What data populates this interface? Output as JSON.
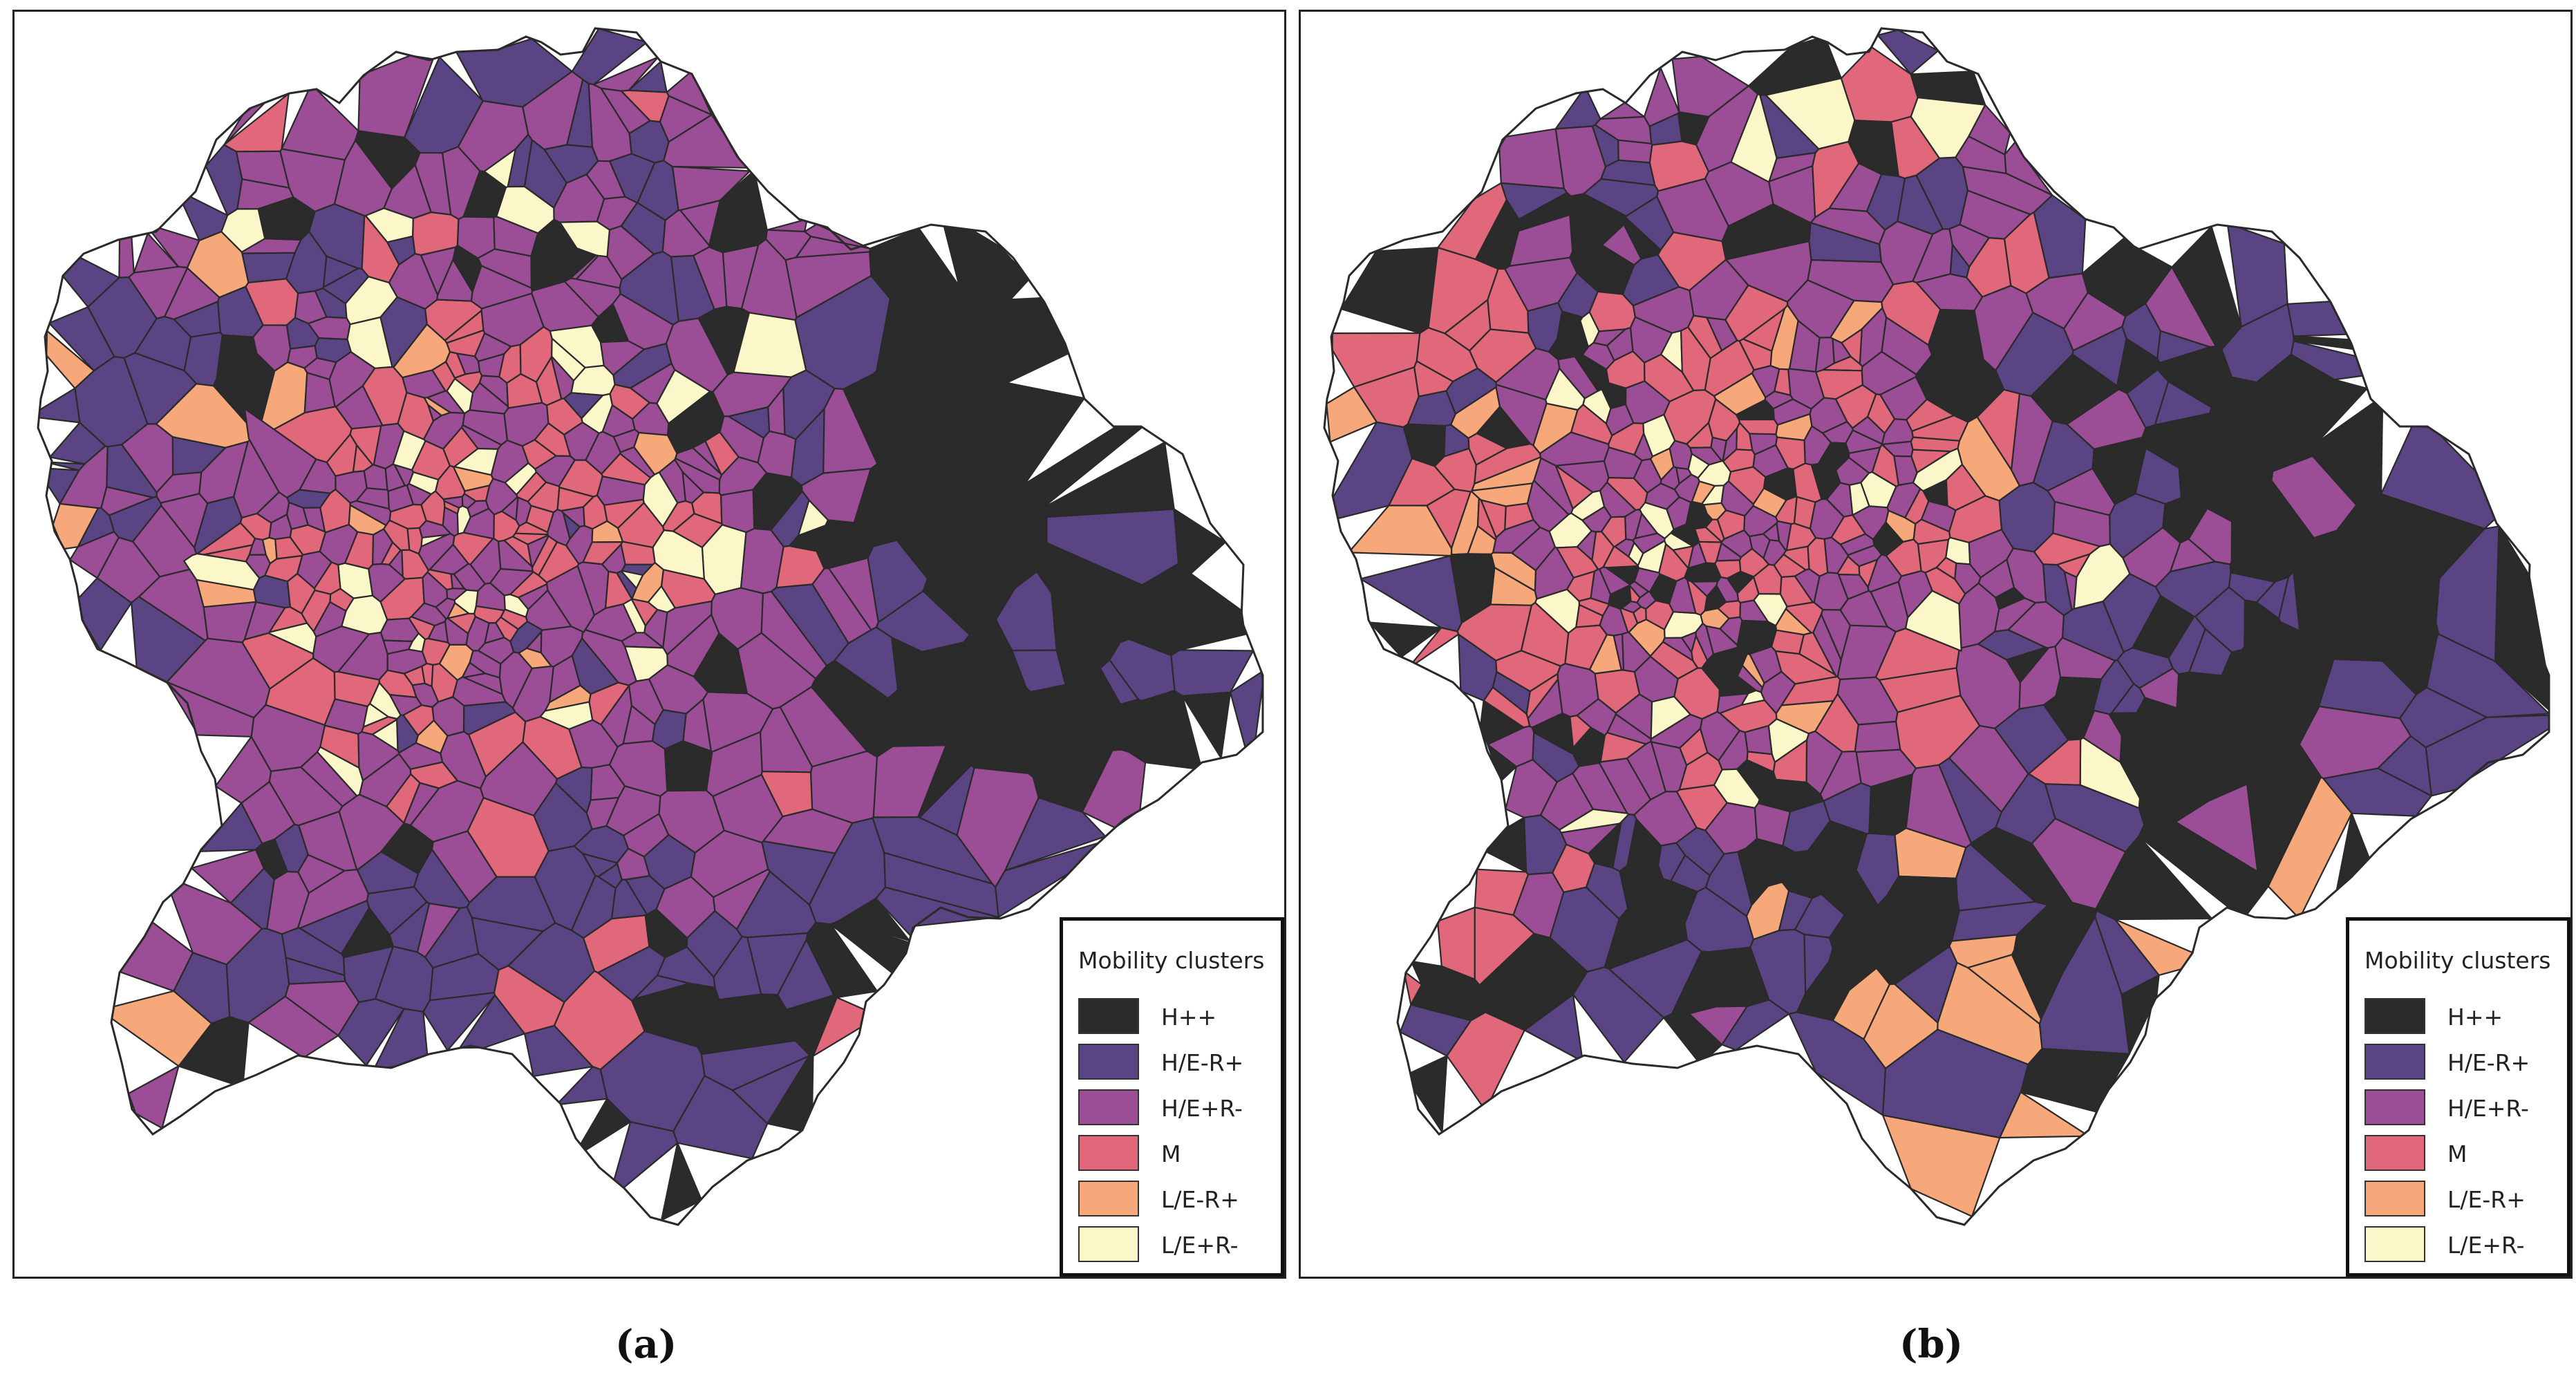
{
  "colors": {
    "H++": "#2b2b2b",
    "H/E-R+": "#5a4483",
    "H/E+R-": "#9b4d96",
    "M": "#e0687a",
    "L/E-R+": "#f7a87a",
    "L/E+R-": "#fcf7c9",
    "edge": "#2a2a2a"
  },
  "panels": [
    {
      "caption": "(a)",
      "legend": {
        "title": "Mobility clusters",
        "items": [
          {
            "label": "H++",
            "color": "#2b2b2b"
          },
          {
            "label": "H/E-R+",
            "color": "#5a4483"
          },
          {
            "label": "H/E+R-",
            "color": "#9b4d96"
          },
          {
            "label": "M",
            "color": "#e0687a"
          },
          {
            "label": "L/E-R+",
            "color": "#f7a87a"
          },
          {
            "label": "L/E+R-",
            "color": "#fcf7c9"
          }
        ]
      }
    },
    {
      "caption": "(b)",
      "legend": {
        "title": "Mobility clusters",
        "items": [
          {
            "label": "H++",
            "color": "#2b2b2b"
          },
          {
            "label": "H/E-R+",
            "color": "#5a4483"
          },
          {
            "label": "H/E+R-",
            "color": "#9b4d96"
          },
          {
            "label": "M",
            "color": "#e0687a"
          },
          {
            "label": "L/E-R+",
            "color": "#f7a87a"
          },
          {
            "label": "L/E+R-",
            "color": "#fcf7c9"
          }
        ]
      }
    }
  ]
}
